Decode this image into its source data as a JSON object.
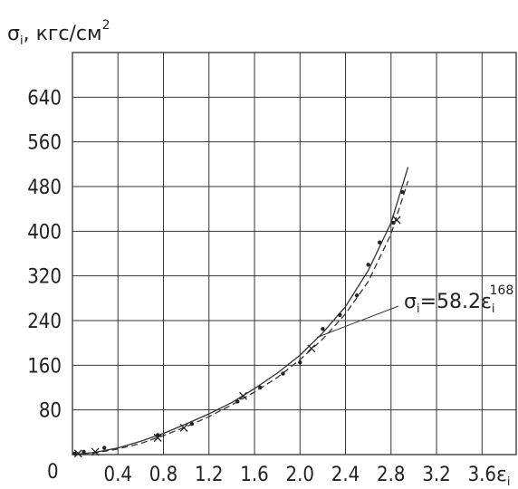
{
  "chart_data": {
    "type": "scatter",
    "ylabel": {
      "symbol": "σ",
      "sub": "i",
      "text": ", кгс/см",
      "sup": "2"
    },
    "xlabel": {
      "symbol": "ε",
      "sub": "i"
    },
    "xlim": [
      0,
      3.9
    ],
    "ylim": [
      0,
      720
    ],
    "x_ticks": [
      "0.4",
      "0.8",
      "1.2",
      "1.6",
      "2.0",
      "2.4",
      "2.8",
      "3.2",
      "3.6"
    ],
    "y_ticks": [
      "80",
      "160",
      "240",
      "320",
      "400",
      "480",
      "560",
      "640"
    ],
    "origin_label": "0",
    "grid": true,
    "series": [
      {
        "marker": "dot",
        "x": [
          0.02,
          0.1,
          0.28,
          0.75,
          1.05,
          1.45,
          1.65,
          1.85,
          2.0,
          2.2,
          2.35,
          2.5,
          2.6,
          2.7,
          2.82,
          2.9
        ],
        "y": [
          2,
          5,
          12,
          35,
          55,
          95,
          120,
          145,
          165,
          225,
          250,
          285,
          340,
          380,
          415,
          470
        ]
      },
      {
        "marker": "cross",
        "x": [
          0.05,
          0.2,
          0.75,
          0.98,
          1.5,
          2.1,
          2.85
        ],
        "y": [
          2,
          5,
          30,
          48,
          105,
          190,
          420
        ]
      },
      {
        "line": "fit_solid",
        "x": [
          0.0,
          0.2,
          0.4,
          0.6,
          0.8,
          1.0,
          1.2,
          1.4,
          1.6,
          1.8,
          2.0,
          2.2,
          2.4,
          2.6,
          2.8,
          2.95
        ],
        "y": [
          0,
          4,
          12,
          24,
          38,
          55,
          73,
          93,
          118,
          146,
          178,
          218,
          265,
          330,
          415,
          515
        ]
      },
      {
        "line": "fit_dashed",
        "x": [
          0.0,
          0.2,
          0.4,
          0.6,
          0.8,
          1.0,
          1.2,
          1.4,
          1.6,
          1.8,
          2.0,
          2.2,
          2.4,
          2.6,
          2.8,
          2.95
        ],
        "y": [
          0,
          3,
          10,
          20,
          34,
          50,
          68,
          89,
          112,
          138,
          170,
          207,
          252,
          310,
          395,
          490
        ]
      }
    ],
    "annotations": [
      {
        "parts": {
          "lhs_symbol": "σ",
          "lhs_sub": "i",
          "eq": "=58.2ε",
          "rhs_sub": "i",
          "rhs_sup": "168"
        },
        "points_to": {
          "x": 2.15,
          "y": 210
        },
        "text_at": {
          "x": 3.0,
          "y": 265
        }
      }
    ]
  }
}
